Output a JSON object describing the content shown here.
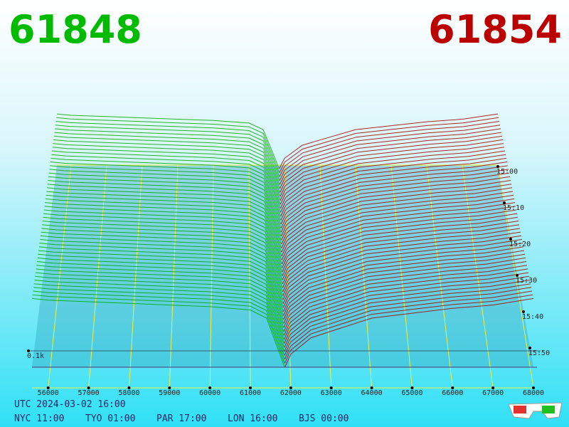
{
  "header": {
    "bid_price": 61848,
    "ask_price": 61854
  },
  "chart_data": {
    "type": "depth3d",
    "bid": {
      "color": "#00aa00",
      "x": [
        55600,
        56000,
        57000,
        58000,
        59000,
        60000,
        61000,
        61400,
        61700,
        61848
      ],
      "values": [
        0.42,
        0.41,
        0.4,
        0.39,
        0.38,
        0.37,
        0.35,
        0.3,
        0.1,
        0
      ]
    },
    "ask": {
      "color": "#aa0000",
      "x": [
        61854,
        62000,
        62500,
        63000,
        64000,
        65000,
        66000,
        67000,
        68000
      ],
      "values": [
        0,
        0.08,
        0.18,
        0.22,
        0.3,
        0.33,
        0.36,
        0.38,
        0.42
      ]
    },
    "xlim": [
      55600,
      68000
    ],
    "xticks": [
      56000,
      57000,
      58000,
      59000,
      60000,
      61000,
      62000,
      63000,
      64000,
      65000,
      66000,
      67000,
      68000
    ],
    "time_ticks": [
      "15:00",
      "15:10",
      "15:20",
      "15:30",
      "15:40",
      "15:50"
    ],
    "depth_tick": {
      "value": 0.1,
      "label": "0.1k"
    }
  },
  "footer": {
    "utc": "UTC 2024-03-02 16:00",
    "cities": [
      "NYC 11:00",
      "TYO 01:00",
      "PAR 17:00",
      "LON 16:00",
      "BJS 00:00"
    ]
  }
}
